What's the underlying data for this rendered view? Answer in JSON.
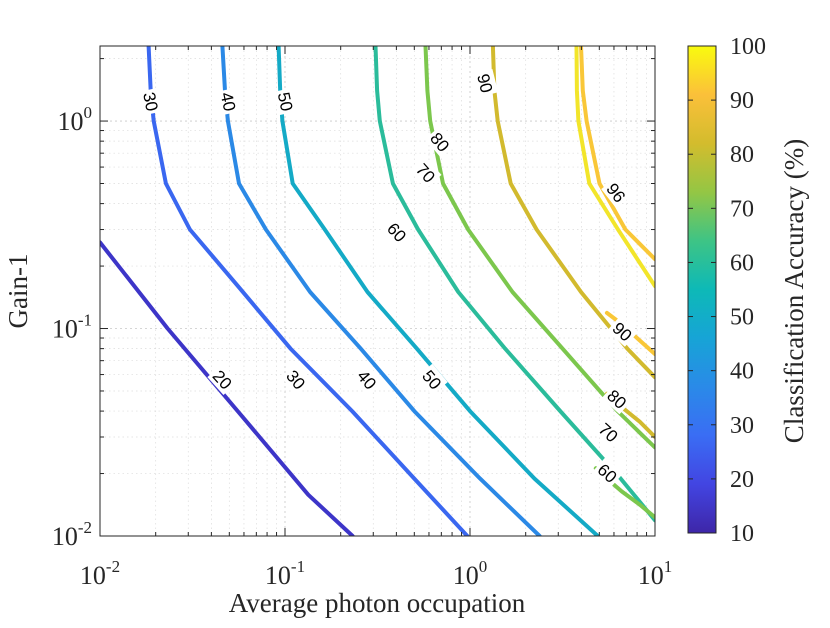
{
  "chart_data": {
    "type": "contour",
    "xlabel": "Average photon occupation",
    "ylabel": "Gain-1",
    "colorbar_label": "Classification Accuracy (%)",
    "x_scale": "log",
    "y_scale": "log",
    "xlim": [
      0.01,
      10
    ],
    "ylim": [
      0.01,
      2.3
    ],
    "x_ticks": [
      {
        "base": "10",
        "exp": "-2",
        "value": 0.01
      },
      {
        "base": "10",
        "exp": "-1",
        "value": 0.1
      },
      {
        "base": "10",
        "exp": "0",
        "value": 1
      },
      {
        "base": "10",
        "exp": "1",
        "value": 10
      }
    ],
    "y_ticks": [
      {
        "base": "10",
        "exp": "-2",
        "value": 0.01
      },
      {
        "base": "10",
        "exp": "-1",
        "value": 0.1
      },
      {
        "base": "10",
        "exp": "0",
        "value": 1
      }
    ],
    "colorbar": {
      "range": [
        10,
        100
      ],
      "ticks": [
        "10",
        "20",
        "30",
        "40",
        "50",
        "60",
        "70",
        "80",
        "90",
        "100"
      ],
      "colormap": "parula"
    },
    "grid": true,
    "contours": [
      {
        "level": 20,
        "label": "20",
        "color": "#3d35c8",
        "points": [
          [
            0.01,
            0.26
          ],
          [
            0.0232,
            0.1
          ],
          [
            0.0557,
            0.0398
          ],
          [
            0.1336,
            0.0158
          ],
          [
            0.232,
            0.01
          ]
        ]
      },
      {
        "level": 30,
        "label": "30",
        "color": "#3a67f0",
        "points": [
          [
            0.0183,
            2.3
          ],
          [
            0.0188,
            1.4
          ],
          [
            0.0195,
            1.0
          ],
          [
            0.0227,
            0.5
          ],
          [
            0.0306,
            0.3
          ],
          [
            0.0557,
            0.16
          ],
          [
            0.1071,
            0.08
          ],
          [
            0.2318,
            0.0398
          ],
          [
            0.4999,
            0.0189
          ],
          [
            0.9665,
            0.01
          ]
        ]
      },
      {
        "level": 40,
        "label": "40",
        "color": "#2b89e6",
        "points": [
          [
            0.0459,
            2.3
          ],
          [
            0.0474,
            1.4
          ],
          [
            0.0491,
            1.0
          ],
          [
            0.0564,
            0.5
          ],
          [
            0.0788,
            0.3
          ],
          [
            0.1367,
            0.15
          ],
          [
            0.2565,
            0.08
          ],
          [
            0.4999,
            0.04
          ],
          [
            1.1346,
            0.0189
          ],
          [
            2.3768,
            0.01
          ]
        ]
      },
      {
        "level": 50,
        "label": "50",
        "color": "#14aac6",
        "points": [
          [
            0.0924,
            2.3
          ],
          [
            0.0942,
            1.4
          ],
          [
            0.0968,
            1.0
          ],
          [
            0.1101,
            0.5
          ],
          [
            0.1642,
            0.3
          ],
          [
            0.2793,
            0.15
          ],
          [
            0.5157,
            0.08
          ],
          [
            1.0,
            0.04
          ],
          [
            2.2318,
            0.0189
          ],
          [
            4.9095,
            0.01
          ]
        ]
      },
      {
        "level": 60,
        "label": "60",
        "color": "#2bbc9b",
        "points": [
          [
            0.3083,
            2.3
          ],
          [
            0.3148,
            1.4
          ],
          [
            0.3256,
            1.0
          ],
          [
            0.3829,
            0.5
          ],
          [
            0.5239,
            0.3
          ],
          [
            0.8645,
            0.15
          ],
          [
            1.5488,
            0.08
          ],
          [
            3.0902,
            0.0398
          ],
          [
            6.3096,
            0.0196
          ],
          [
            10.0,
            0.0119
          ]
        ]
      },
      {
        "level": 70,
        "label": "70",
        "color": "#7cc74d",
        "points": [
          [
            0.5749,
            2.3
          ],
          [
            0.5885,
            1.4
          ],
          [
            0.609,
            1.0
          ],
          [
            0.7143,
            0.5
          ],
          [
            0.9772,
            0.3
          ],
          [
            1.6982,
            0.15
          ],
          [
            3.1623,
            0.08
          ],
          [
            6.3096,
            0.0398
          ],
          [
            10.0,
            0.0267
          ]
        ]
      },
      {
        "level": 80,
        "label": "80",
        "color": "#d2ba2e",
        "points": [
          [
            1.3293,
            2.3
          ],
          [
            1.3551,
            1.4
          ],
          [
            1.4125,
            1.0
          ],
          [
            1.6596,
            0.5
          ],
          [
            2.2909,
            0.3
          ],
          [
            3.9811,
            0.15
          ],
          [
            7.0795,
            0.08
          ],
          [
            10.0,
            0.0582
          ]
        ]
      },
      {
        "level": 90,
        "label": "90",
        "color": "#f9c738",
        "points": [
          [
            3.9811,
            2.3
          ],
          [
            4.0738,
            1.4
          ],
          [
            4.2658,
            1.0
          ],
          [
            5.0119,
            0.5
          ],
          [
            6.9183,
            0.3
          ],
          [
            10.0,
            0.2159
          ]
        ]
      },
      {
        "level": 90,
        "label": "90",
        "color": "#f9c738",
        "points": [
          [
            10.0,
            0.0753
          ],
          [
            8.3176,
            0.0872
          ],
          [
            6.6069,
            0.1052
          ],
          [
            5.4954,
            0.119
          ]
        ]
      },
      {
        "level": 80,
        "label": "80",
        "color": "#d2ba2e",
        "points": [
          [
            10.0,
            0.03
          ],
          [
            8.3176,
            0.0354
          ],
          [
            6.6069,
            0.0418
          ],
          [
            5.4954,
            0.0485
          ]
        ]
      },
      {
        "level": 70,
        "label": "70",
        "color": "#7cc74d",
        "points": [
          [
            10.0,
            0.0123
          ],
          [
            8.3176,
            0.0141
          ],
          [
            6.6069,
            0.0164
          ],
          [
            5.4954,
            0.0189
          ],
          [
            4.7863,
            0.0212
          ]
        ]
      },
      {
        "level": 96,
        "label": "96",
        "color": "#f2e52a",
        "points": [
          [
            3.7625,
            2.3
          ],
          [
            3.7844,
            1.4
          ],
          [
            3.8548,
            1.0
          ],
          [
            4.4157,
            0.5
          ],
          [
            6.3096,
            0.3
          ],
          [
            10.0,
            0.16
          ]
        ]
      }
    ],
    "contour_labels": [
      {
        "text": "20",
        "x": 0.0457,
        "y": 0.0565,
        "angle": 48
      },
      {
        "text": "30",
        "x": 0.0187,
        "y": 1.24,
        "angle": 78
      },
      {
        "text": "30",
        "x": 0.114,
        "y": 0.0565,
        "angle": 50
      },
      {
        "text": "40",
        "x": 0.0491,
        "y": 1.24,
        "angle": 78
      },
      {
        "text": "40",
        "x": 0.276,
        "y": 0.0565,
        "angle": 50
      },
      {
        "text": "50",
        "x": 0.1,
        "y": 1.24,
        "angle": 78
      },
      {
        "text": "50",
        "x": 0.62,
        "y": 0.0565,
        "angle": 50
      },
      {
        "text": "60",
        "x": 0.4,
        "y": 0.29,
        "angle": 48
      },
      {
        "text": "60",
        "x": 5.5,
        "y": 0.02,
        "angle": 42
      },
      {
        "text": "70",
        "x": 0.573,
        "y": 0.56,
        "angle": 48
      },
      {
        "text": "70",
        "x": 5.58,
        "y": 0.0314,
        "angle": 42
      },
      {
        "text": "80",
        "x": 0.685,
        "y": 0.79,
        "angle": 50
      },
      {
        "text": "80",
        "x": 6.2,
        "y": 0.0455,
        "angle": 42
      },
      {
        "text": "90",
        "x": 1.2,
        "y": 1.52,
        "angle": 76
      },
      {
        "text": "90",
        "x": 6.63,
        "y": 0.0962,
        "angle": 42
      },
      {
        "text": "96",
        "x": 6.13,
        "y": 0.45,
        "angle": 52
      }
    ]
  }
}
